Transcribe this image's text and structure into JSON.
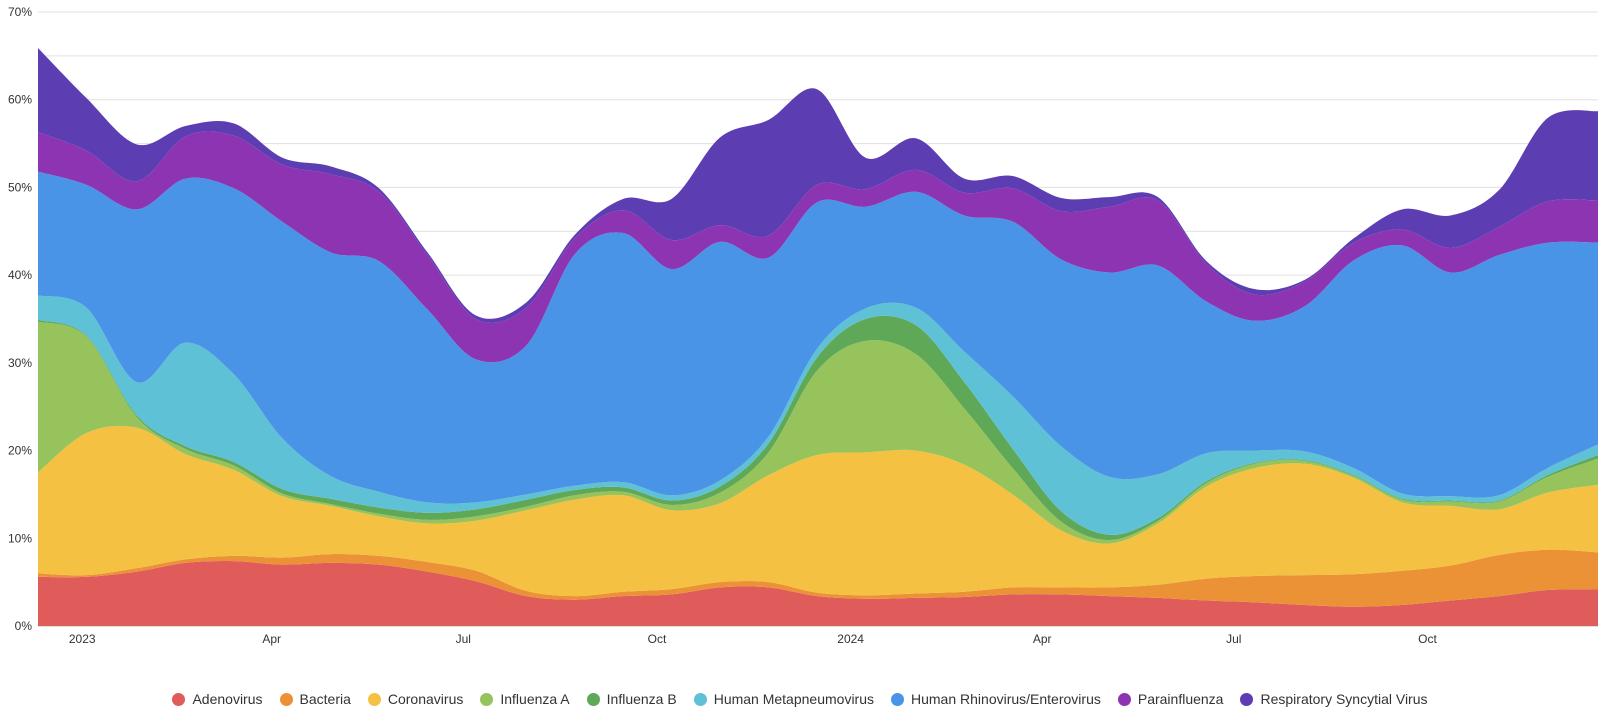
{
  "chart_data": {
    "type": "area",
    "stacked": true,
    "title": "",
    "xlabel": "",
    "ylabel": "",
    "y_tick_labels": [
      "0%",
      "10%",
      "20%",
      "30%",
      "40%",
      "50%",
      "60%",
      "70%"
    ],
    "ylim": [
      0,
      70
    ],
    "x_tick_labels": [
      "2023",
      "Apr",
      "Jul",
      "Oct",
      "2024",
      "Apr",
      "Jul",
      "Oct"
    ],
    "x_tick_dates": [
      "2023-01-01",
      "2023-04-01",
      "2023-07-01",
      "2023-10-01",
      "2024-01-01",
      "2024-04-01",
      "2024-07-01",
      "2024-10-01"
    ],
    "xlim": [
      "2022-12-11",
      "2024-12-21"
    ],
    "grid": true,
    "legend_position": "bottom",
    "x": [
      "2022-12-11",
      "2023-01-03",
      "2023-01-27",
      "2023-02-19",
      "2023-03-14",
      "2023-04-06",
      "2023-04-29",
      "2023-05-22",
      "2023-06-14",
      "2023-07-07",
      "2023-07-31",
      "2023-08-23",
      "2023-09-15",
      "2023-10-08",
      "2023-10-31",
      "2023-11-23",
      "2023-12-16",
      "2024-01-08",
      "2024-02-01",
      "2024-02-24",
      "2024-03-18",
      "2024-04-10",
      "2024-05-03",
      "2024-05-26",
      "2024-06-18",
      "2024-07-11",
      "2024-08-04",
      "2024-08-27",
      "2024-09-19",
      "2024-10-12",
      "2024-11-04",
      "2024-11-27",
      "2024-12-21"
    ],
    "series": [
      {
        "name": "Adenovirus",
        "color": "#e05c5a",
        "values": [
          5.6,
          5.6,
          6.2,
          7.2,
          7.4,
          7.0,
          7.2,
          7.0,
          6.2,
          5.1,
          3.4,
          3.0,
          3.4,
          3.6,
          4.4,
          4.4,
          3.4,
          3.1,
          3.2,
          3.3,
          3.6,
          3.6,
          3.4,
          3.2,
          2.9,
          2.7,
          2.4,
          2.2,
          2.4,
          2.9,
          3.4,
          4.1,
          4.2
        ]
      },
      {
        "name": "Bacteria",
        "color": "#ec9236",
        "values": [
          0.4,
          0.2,
          0.4,
          0.4,
          0.6,
          0.8,
          1.0,
          1.0,
          1.1,
          1.2,
          0.6,
          0.4,
          0.5,
          0.6,
          0.6,
          0.6,
          0.4,
          0.4,
          0.5,
          0.6,
          0.8,
          0.8,
          1.0,
          1.5,
          2.5,
          3.0,
          3.4,
          3.7,
          3.9,
          4.0,
          4.7,
          4.6,
          4.2
        ]
      },
      {
        "name": "Coronavirus",
        "color": "#f4c142",
        "values": [
          11.5,
          16.2,
          16.0,
          12.0,
          9.8,
          7.0,
          5.5,
          4.5,
          4.4,
          5.7,
          9.2,
          11.0,
          11.0,
          9.0,
          9.0,
          12.2,
          15.7,
          16.3,
          16.3,
          14.5,
          10.6,
          6.5,
          5.0,
          7.0,
          10.5,
          12.3,
          12.7,
          11.0,
          7.8,
          6.8,
          5.2,
          6.5,
          7.7
        ]
      },
      {
        "name": "Influenza A",
        "color": "#97c35c",
        "values": [
          17.2,
          11.0,
          1.2,
          0.6,
          0.5,
          0.3,
          0.2,
          0.3,
          0.4,
          0.5,
          0.4,
          0.5,
          0.4,
          0.6,
          1.2,
          2.6,
          9.6,
          12.7,
          11.0,
          6.4,
          3.0,
          1.0,
          0.4,
          0.3,
          0.4,
          0.5,
          0.3,
          0.2,
          0.3,
          0.5,
          0.9,
          1.8,
          3.0
        ]
      },
      {
        "name": "Influenza B",
        "color": "#5fa858",
        "values": [
          0.2,
          0.1,
          0.2,
          0.3,
          0.4,
          0.5,
          0.6,
          0.7,
          0.8,
          0.8,
          0.8,
          0.6,
          0.5,
          0.5,
          0.7,
          1.0,
          1.5,
          2.5,
          3.3,
          3.0,
          2.2,
          1.2,
          0.6,
          0.3,
          0.2,
          0.1,
          0.1,
          0.1,
          0.1,
          0.1,
          0.1,
          0.2,
          0.4
        ]
      },
      {
        "name": "Human Metapneumovirus",
        "color": "#5ec1d6",
        "values": [
          2.8,
          3.2,
          3.8,
          11.8,
          10.0,
          5.8,
          2.6,
          1.8,
          1.2,
          0.8,
          0.6,
          0.5,
          0.6,
          0.6,
          0.7,
          0.8,
          1.0,
          1.2,
          2.0,
          3.5,
          6.0,
          7.4,
          6.6,
          5.0,
          3.2,
          1.4,
          1.0,
          0.8,
          0.6,
          0.5,
          0.6,
          0.8,
          1.2
        ]
      },
      {
        "name": "Human Rhinovirus/Enterovirus",
        "color": "#4a94e8",
        "values": [
          14.1,
          14.0,
          19.7,
          18.7,
          21.2,
          24.7,
          25.5,
          26.3,
          22.0,
          16.3,
          17.0,
          26.4,
          28.4,
          25.8,
          27.2,
          20.4,
          16.7,
          11.6,
          13.2,
          15.5,
          19.9,
          21.3,
          23.3,
          23.8,
          17.3,
          14.8,
          16.6,
          23.7,
          28.3,
          25.5,
          27.4,
          25.7,
          23.0
        ]
      },
      {
        "name": "Parainfluenza",
        "color": "#8c34b2",
        "values": [
          4.5,
          3.9,
          3.2,
          4.8,
          6.0,
          6.5,
          8.9,
          7.9,
          6.2,
          4.6,
          4.3,
          1.8,
          2.6,
          3.3,
          1.9,
          2.5,
          2.0,
          2.0,
          2.5,
          2.6,
          3.8,
          5.5,
          7.5,
          7.4,
          4.3,
          3.0,
          2.8,
          2.0,
          1.8,
          2.8,
          3.2,
          4.7,
          4.8
        ]
      },
      {
        "name": "Respiratory Syncytial Virus",
        "color": "#5c3eb2",
        "values": [
          9.6,
          6.0,
          4.2,
          1.2,
          1.4,
          0.8,
          0.9,
          0.4,
          0.3,
          0.4,
          0.6,
          0.4,
          1.3,
          4.7,
          10.0,
          13.2,
          10.9,
          3.6,
          3.6,
          1.6,
          1.4,
          1.5,
          1.1,
          0.4,
          0.3,
          0.6,
          0.2,
          0.5,
          2.3,
          3.7,
          4.2,
          9.5,
          10.2
        ]
      }
    ]
  }
}
